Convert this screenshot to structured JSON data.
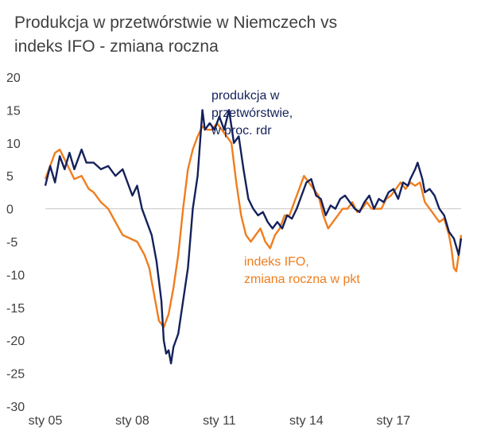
{
  "chart_data": {
    "type": "line",
    "title_lines": [
      "Produkcja w przetwórstwie w Niemczech vs",
      "indeks IFO - zmiana roczna"
    ],
    "x_tick_labels": [
      "sty 05",
      "sty 08",
      "sty 11",
      "sty 14",
      "sty 17"
    ],
    "x_range": [
      "2005-01",
      "2019-05"
    ],
    "ylim": [
      -30,
      20
    ],
    "y_ticks": [
      20,
      15,
      10,
      5,
      0,
      -5,
      -10,
      -15,
      -20,
      -25,
      -30
    ],
    "zero_line": true,
    "series": [
      {
        "name": "produkcja w przetwórstwie, w proc. rdr",
        "label_lines": [
          "produkcja w",
          "przetwórstwie,",
          "w proc. rdr"
        ],
        "color": "#14215a",
        "points": [
          [
            "2005-01",
            3.5
          ],
          [
            "2005-03",
            6.5
          ],
          [
            "2005-05",
            4.0
          ],
          [
            "2005-07",
            8.0
          ],
          [
            "2005-09",
            6.0
          ],
          [
            "2005-11",
            8.5
          ],
          [
            "2006-01",
            6.0
          ],
          [
            "2006-04",
            9.0
          ],
          [
            "2006-06",
            7.0
          ],
          [
            "2006-09",
            7.0
          ],
          [
            "2006-12",
            6.0
          ],
          [
            "2007-03",
            6.5
          ],
          [
            "2007-06",
            5.0
          ],
          [
            "2007-09",
            6.0
          ],
          [
            "2007-11",
            4.0
          ],
          [
            "2008-01",
            2.0
          ],
          [
            "2008-03",
            3.5
          ],
          [
            "2008-05",
            0.0
          ],
          [
            "2008-07",
            -2.0
          ],
          [
            "2008-09",
            -4.0
          ],
          [
            "2008-11",
            -8.0
          ],
          [
            "2009-01",
            -14.0
          ],
          [
            "2009-02",
            -20.0
          ],
          [
            "2009-03",
            -22.0
          ],
          [
            "2009-04",
            -21.5
          ],
          [
            "2009-05",
            -23.5
          ],
          [
            "2009-06",
            -21.0
          ],
          [
            "2009-08",
            -19.0
          ],
          [
            "2009-10",
            -14.0
          ],
          [
            "2009-12",
            -9.0
          ],
          [
            "2010-02",
            0.0
          ],
          [
            "2010-04",
            5.0
          ],
          [
            "2010-05",
            10.0
          ],
          [
            "2010-06",
            15.0
          ],
          [
            "2010-07",
            12.0
          ],
          [
            "2010-09",
            13.0
          ],
          [
            "2010-11",
            12.0
          ],
          [
            "2011-01",
            14.0
          ],
          [
            "2011-03",
            12.0
          ],
          [
            "2011-05",
            15.0
          ],
          [
            "2011-07",
            10.0
          ],
          [
            "2011-09",
            11.0
          ],
          [
            "2011-11",
            6.0
          ],
          [
            "2012-01",
            1.5
          ],
          [
            "2012-03",
            0.0
          ],
          [
            "2012-05",
            -1.0
          ],
          [
            "2012-07",
            -0.5
          ],
          [
            "2012-09",
            -2.0
          ],
          [
            "2012-11",
            -3.0
          ],
          [
            "2013-01",
            -2.0
          ],
          [
            "2013-03",
            -3.0
          ],
          [
            "2013-05",
            -1.0
          ],
          [
            "2013-07",
            -1.5
          ],
          [
            "2013-09",
            0.0
          ],
          [
            "2013-11",
            2.0
          ],
          [
            "2014-01",
            4.0
          ],
          [
            "2014-03",
            4.5
          ],
          [
            "2014-05",
            2.0
          ],
          [
            "2014-07",
            1.5
          ],
          [
            "2014-09",
            -1.0
          ],
          [
            "2014-11",
            0.5
          ],
          [
            "2015-01",
            0.0
          ],
          [
            "2015-03",
            1.5
          ],
          [
            "2015-05",
            2.0
          ],
          [
            "2015-07",
            1.0
          ],
          [
            "2015-09",
            0.0
          ],
          [
            "2015-11",
            -0.5
          ],
          [
            "2016-01",
            1.0
          ],
          [
            "2016-03",
            2.0
          ],
          [
            "2016-05",
            0.0
          ],
          [
            "2016-07",
            1.5
          ],
          [
            "2016-09",
            1.0
          ],
          [
            "2016-11",
            2.5
          ],
          [
            "2017-01",
            3.0
          ],
          [
            "2017-03",
            1.5
          ],
          [
            "2017-05",
            4.0
          ],
          [
            "2017-07",
            3.5
          ],
          [
            "2017-08",
            4.5
          ],
          [
            "2017-10",
            6.0
          ],
          [
            "2017-11",
            7.0
          ],
          [
            "2018-01",
            4.5
          ],
          [
            "2018-02",
            2.5
          ],
          [
            "2018-04",
            3.0
          ],
          [
            "2018-06",
            2.0
          ],
          [
            "2018-08",
            0.0
          ],
          [
            "2018-10",
            -1.0
          ],
          [
            "2018-12",
            -3.5
          ],
          [
            "2019-02",
            -4.5
          ],
          [
            "2019-04",
            -7.0
          ],
          [
            "2019-05",
            -4.5
          ]
        ]
      },
      {
        "name": "indeks IFO, zmiana roczna w pkt",
        "label_lines": [
          "indeks IFO,",
          "zmiana roczna w pkt"
        ],
        "color": "#f07d1e",
        "points": [
          [
            "2005-01",
            4.5
          ],
          [
            "2005-03",
            6.5
          ],
          [
            "2005-05",
            8.5
          ],
          [
            "2005-07",
            9.0
          ],
          [
            "2005-09",
            7.5
          ],
          [
            "2005-11",
            6.0
          ],
          [
            "2006-01",
            4.5
          ],
          [
            "2006-04",
            5.0
          ],
          [
            "2006-07",
            3.0
          ],
          [
            "2006-09",
            2.5
          ],
          [
            "2006-12",
            1.0
          ],
          [
            "2007-03",
            0.0
          ],
          [
            "2007-06",
            -2.0
          ],
          [
            "2007-09",
            -4.0
          ],
          [
            "2007-12",
            -4.5
          ],
          [
            "2008-03",
            -5.0
          ],
          [
            "2008-06",
            -7.0
          ],
          [
            "2008-08",
            -9.0
          ],
          [
            "2008-10",
            -13.0
          ],
          [
            "2008-12",
            -17.0
          ],
          [
            "2009-02",
            -18.0
          ],
          [
            "2009-04",
            -16.0
          ],
          [
            "2009-06",
            -12.0
          ],
          [
            "2009-08",
            -7.0
          ],
          [
            "2009-10",
            0.0
          ],
          [
            "2009-12",
            6.0
          ],
          [
            "2010-02",
            9.0
          ],
          [
            "2010-04",
            11.0
          ],
          [
            "2010-06",
            12.5
          ],
          [
            "2010-08",
            12.0
          ],
          [
            "2010-10",
            12.0
          ],
          [
            "2010-12",
            13.0
          ],
          [
            "2011-02",
            12.0
          ],
          [
            "2011-04",
            11.0
          ],
          [
            "2011-06",
            10.0
          ],
          [
            "2011-08",
            4.0
          ],
          [
            "2011-10",
            -1.0
          ],
          [
            "2011-12",
            -4.0
          ],
          [
            "2012-02",
            -5.0
          ],
          [
            "2012-04",
            -4.0
          ],
          [
            "2012-06",
            -3.0
          ],
          [
            "2012-08",
            -5.0
          ],
          [
            "2012-10",
            -6.0
          ],
          [
            "2012-12",
            -4.0
          ],
          [
            "2013-02",
            -3.0
          ],
          [
            "2013-04",
            -1.0
          ],
          [
            "2013-06",
            -1.0
          ],
          [
            "2013-08",
            1.0
          ],
          [
            "2013-10",
            3.0
          ],
          [
            "2013-12",
            5.0
          ],
          [
            "2014-02",
            4.0
          ],
          [
            "2014-04",
            3.0
          ],
          [
            "2014-06",
            2.0
          ],
          [
            "2014-08",
            -1.0
          ],
          [
            "2014-10",
            -3.0
          ],
          [
            "2014-12",
            -2.0
          ],
          [
            "2015-02",
            -1.0
          ],
          [
            "2015-04",
            0.0
          ],
          [
            "2015-06",
            0.0
          ],
          [
            "2015-08",
            1.0
          ],
          [
            "2015-10",
            -0.5
          ],
          [
            "2015-12",
            0.0
          ],
          [
            "2016-02",
            1.0
          ],
          [
            "2016-04",
            0.0
          ],
          [
            "2016-06",
            0.0
          ],
          [
            "2016-08",
            0.0
          ],
          [
            "2016-10",
            1.5
          ],
          [
            "2016-12",
            2.0
          ],
          [
            "2017-02",
            3.0
          ],
          [
            "2017-04",
            4.0
          ],
          [
            "2017-06",
            3.0
          ],
          [
            "2017-08",
            4.0
          ],
          [
            "2017-10",
            3.5
          ],
          [
            "2017-12",
            4.0
          ],
          [
            "2018-02",
            1.0
          ],
          [
            "2018-04",
            0.0
          ],
          [
            "2018-06",
            -1.0
          ],
          [
            "2018-08",
            -2.0
          ],
          [
            "2018-10",
            -1.5
          ],
          [
            "2018-12",
            -4.0
          ],
          [
            "2019-01",
            -6.0
          ],
          [
            "2019-02",
            -9.0
          ],
          [
            "2019-03",
            -9.5
          ],
          [
            "2019-04",
            -7.0
          ],
          [
            "2019-05",
            -4.0
          ]
        ]
      }
    ]
  }
}
